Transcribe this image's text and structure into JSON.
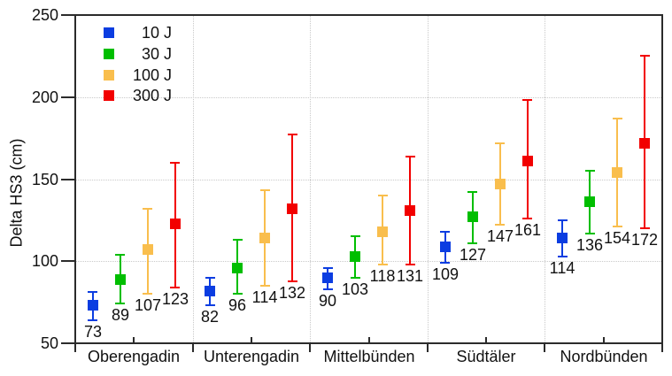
{
  "chart_data": {
    "type": "scatter",
    "subtype": "grouped-points-with-errorbars",
    "title": "",
    "xlabel": "",
    "ylabel": "Delta HS3 (cm)",
    "ylim": [
      50,
      250
    ],
    "yticks": [
      50,
      100,
      150,
      200,
      250
    ],
    "grid": {
      "horizontal": "dotted",
      "vertical_group_separators": "dotted",
      "frame": "solid"
    },
    "legend": {
      "position": "top-left",
      "entries": [
        "10 J",
        "30 J",
        "100 J",
        "300 J"
      ]
    },
    "categories": [
      "Oberengadin",
      "Unterengadin",
      "Mittelbünden",
      "Südtäler",
      "Nordbünden"
    ],
    "series": [
      {
        "name": "10 J",
        "color": "#0B3DE1",
        "values": [
          73,
          82,
          90,
          109,
          114
        ],
        "err_low": [
          64,
          73,
          83,
          99,
          103
        ],
        "err_high": [
          81,
          90,
          96,
          118,
          125
        ]
      },
      {
        "name": "30 J",
        "color": "#00BE00",
        "values": [
          89,
          96,
          103,
          127,
          136
        ],
        "err_low": [
          74,
          80,
          90,
          111,
          117
        ],
        "err_high": [
          104,
          113,
          115,
          142,
          155
        ]
      },
      {
        "name": "100 J",
        "color": "#F9BE4D",
        "values": [
          107,
          114,
          118,
          147,
          154
        ],
        "err_low": [
          80,
          85,
          98,
          122,
          121
        ],
        "err_high": [
          132,
          143,
          140,
          172,
          187
        ]
      },
      {
        "name": "300 J",
        "color": "#F20000",
        "values": [
          123,
          132,
          131,
          161,
          172
        ],
        "err_low": [
          84,
          88,
          98,
          126,
          120
        ],
        "err_high": [
          160,
          177,
          164,
          198,
          225
        ]
      }
    ],
    "point_labels": "values shown below each errorbar"
  },
  "colors": {
    "axis": "#2b2b2b",
    "grid": "#c9c9c9",
    "text": "#111111",
    "background": "#ffffff"
  }
}
